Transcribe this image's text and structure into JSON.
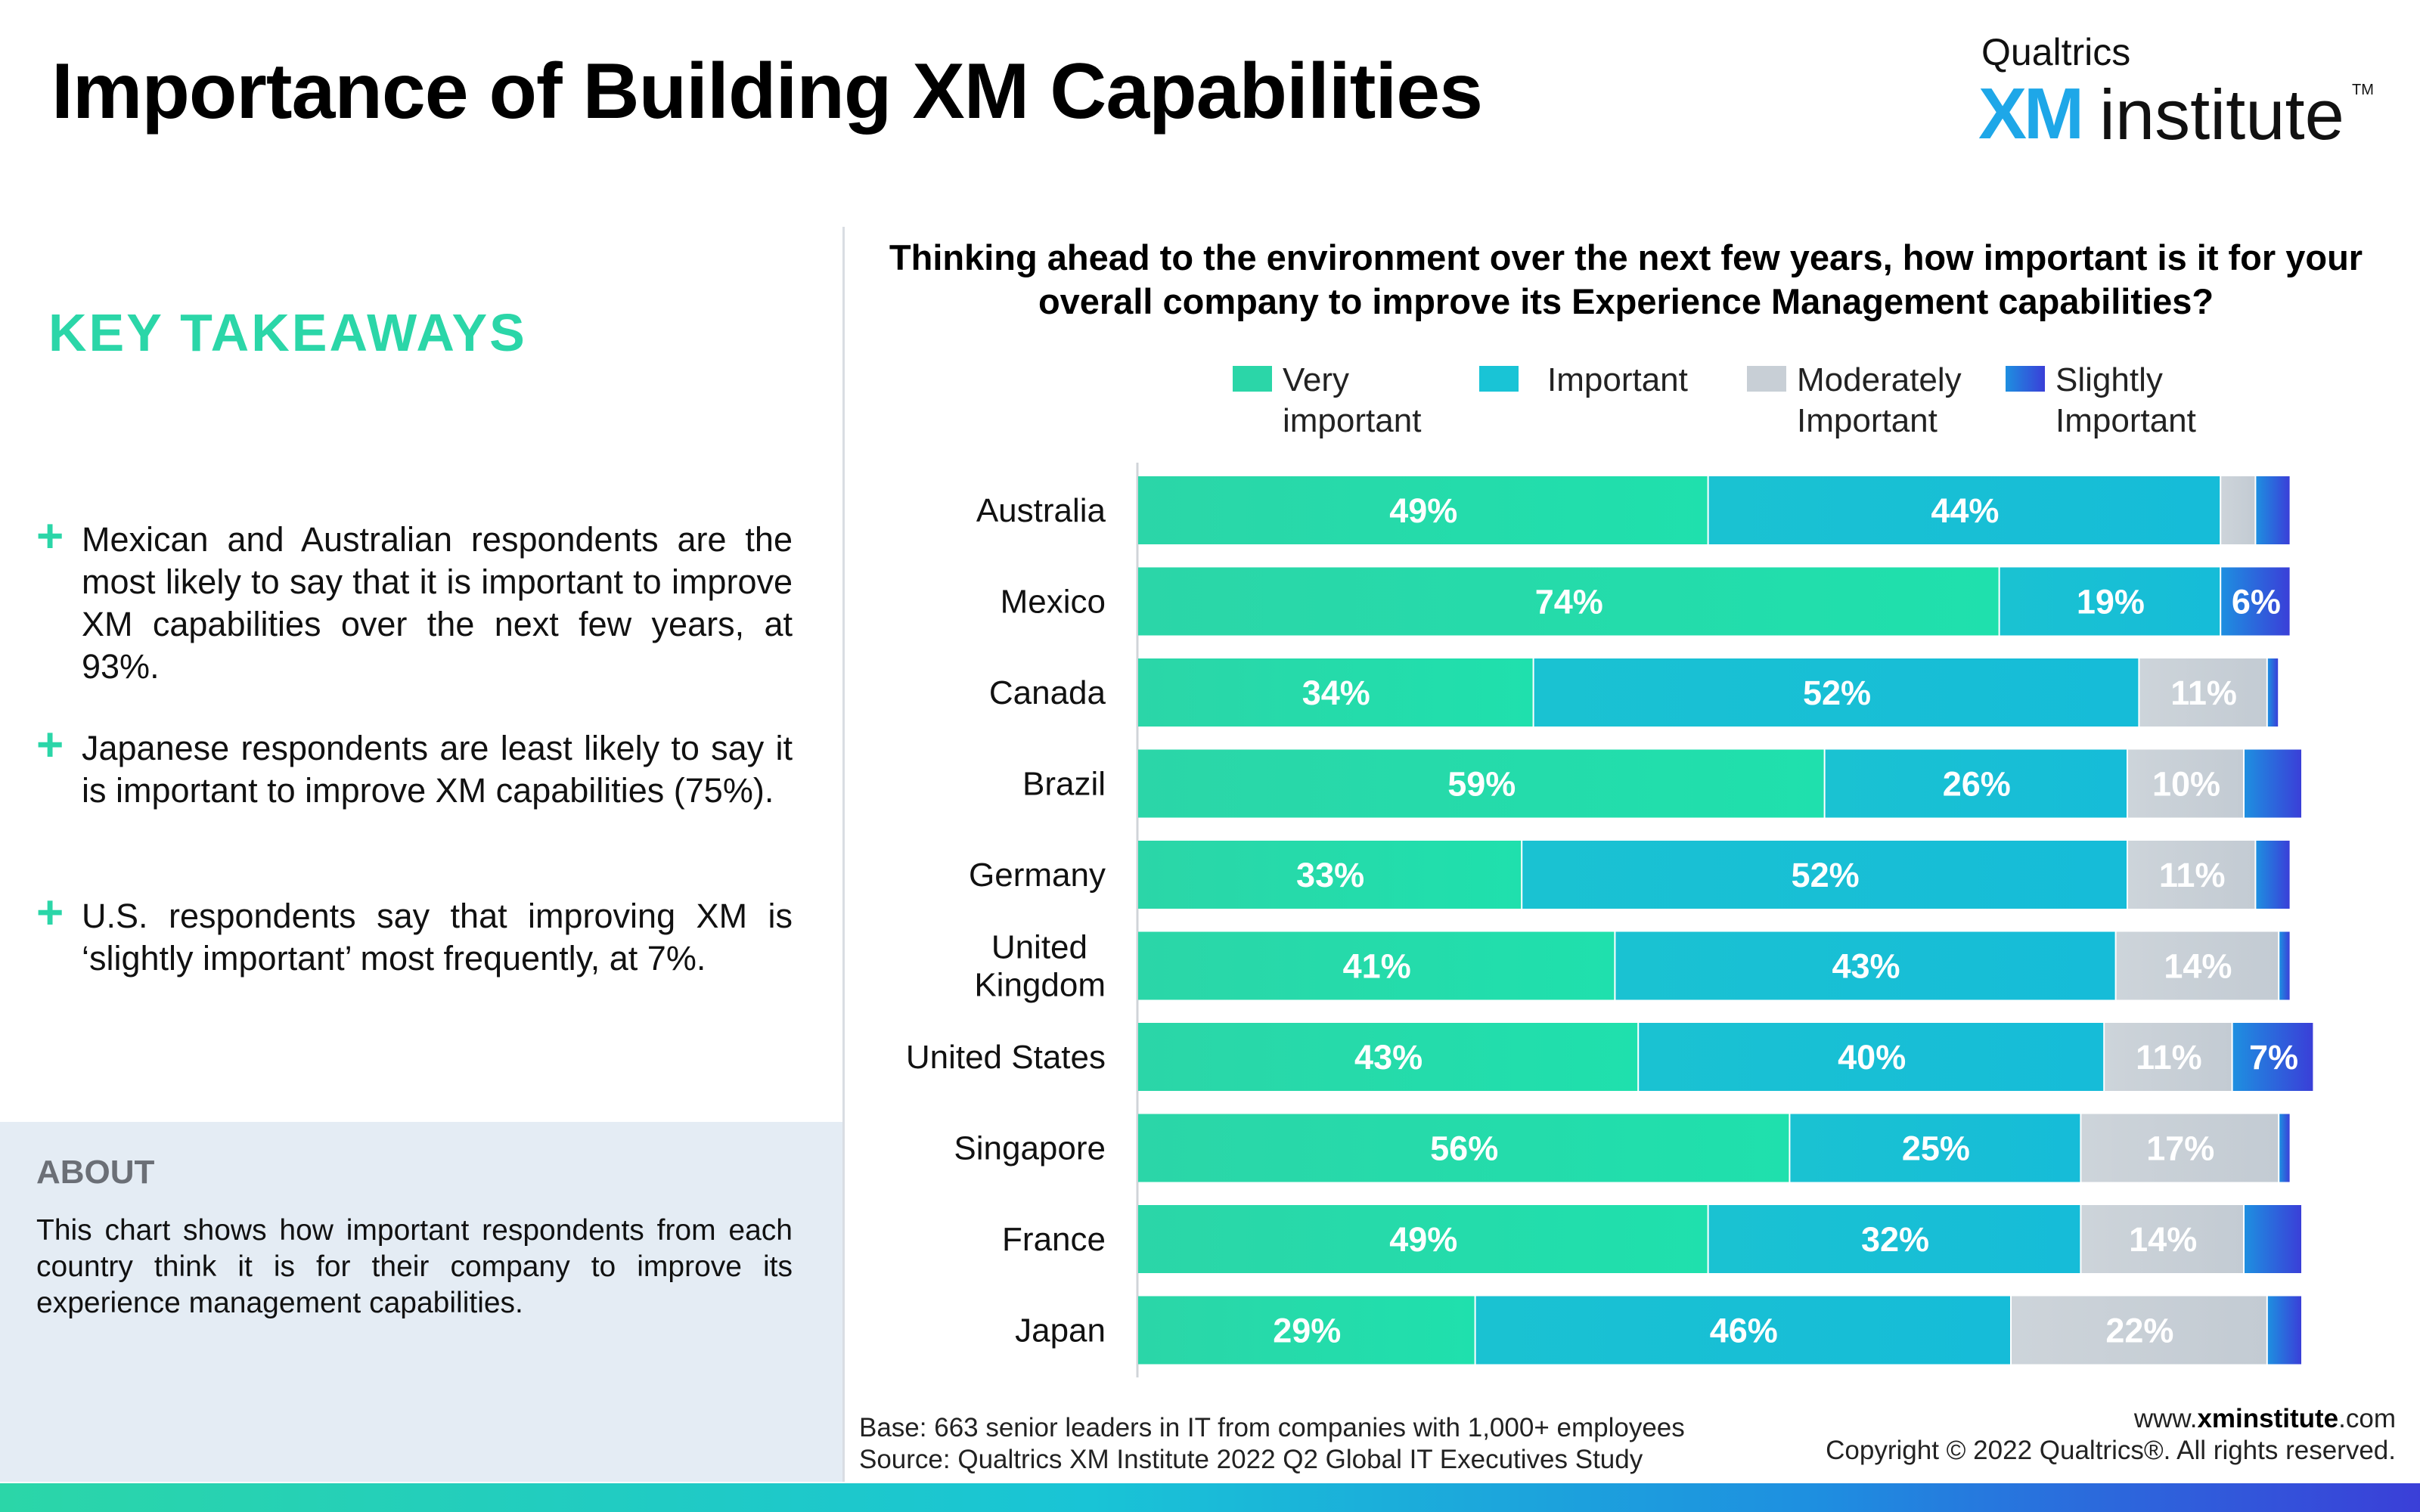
{
  "header": {
    "title": "Importance of Building XM Capabilities",
    "logo_top": "Qualtrics",
    "logo_xm": "XM",
    "logo_institute": "institute",
    "logo_tm": "TM"
  },
  "takeaways": {
    "heading": "KEY TAKEAWAYS",
    "items": [
      "Mexican and Australian respondents are the most likely to say that it is important to improve XM capabilities over the next few years, at 93%.",
      "Japanese respondents are least likely to say it is important to improve XM capabilities (75%).",
      "U.S. respondents say that improving XM is ‘slightly important’ most frequently, at 7%."
    ]
  },
  "about": {
    "heading": "ABOUT",
    "text": "This chart shows how important respondents from each country think it is for their company to improve its experience management capabilities."
  },
  "footer": {
    "base": "Base: 663 senior leaders in IT from companies with 1,000+ employees",
    "source": "Source: Qualtrics XM Institute 2022 Q2 Global IT Executives Study",
    "site_prefix": "www.",
    "site_bold": "xminstitute",
    "site_suffix": ".com",
    "copyright": "Copyright © 2022 Qualtrics®. All rights reserved."
  },
  "colors": {
    "very_important": "#2bd6a8",
    "important": "#19c4d6",
    "moderately_important": "#c8cfd6",
    "slightly_important": "#2f5fe0",
    "accent": "#2bd6a8"
  },
  "chart_data": {
    "type": "bar",
    "orientation": "horizontal",
    "stacked": true,
    "title": "Thinking ahead to the environment over the next few years, how important is it for your overall company to improve its Experience Management capabilities?",
    "categories": [
      "Australia",
      "Mexico",
      "Canada",
      "Brazil",
      "Germany",
      "United Kingdom",
      "United States",
      "Singapore",
      "France",
      "Japan"
    ],
    "series": [
      {
        "name": "Very important",
        "values": [
          49,
          74,
          34,
          59,
          33,
          41,
          43,
          56,
          49,
          29
        ]
      },
      {
        "name": "Important",
        "values": [
          44,
          19,
          52,
          26,
          52,
          43,
          40,
          25,
          32,
          46
        ]
      },
      {
        "name": "Moderately Important",
        "values": [
          3,
          0,
          11,
          10,
          11,
          14,
          11,
          17,
          14,
          22
        ]
      },
      {
        "name": "Slightly Important",
        "values": [
          3,
          6,
          1,
          5,
          3,
          1,
          7,
          1,
          5,
          3
        ]
      }
    ],
    "data_labels": [
      [
        "49%",
        "44%",
        "",
        ""
      ],
      [
        "74%",
        "19%",
        "",
        "6%"
      ],
      [
        "34%",
        "52%",
        "11%",
        ""
      ],
      [
        "59%",
        "26%",
        "10%",
        ""
      ],
      [
        "33%",
        "52%",
        "11%",
        ""
      ],
      [
        "41%",
        "43%",
        "14%",
        ""
      ],
      [
        "43%",
        "40%",
        "11%",
        "7%"
      ],
      [
        "56%",
        "25%",
        "17%",
        ""
      ],
      [
        "49%",
        "32%",
        "14%",
        ""
      ],
      [
        "29%",
        "46%",
        "22%",
        ""
      ]
    ],
    "legend_labels": [
      "Very\nimportant",
      "Important",
      "Moderately\nImportant",
      "Slightly\nImportant"
    ],
    "xlim": [
      0,
      100
    ],
    "legend_position": "top",
    "grid": false
  }
}
